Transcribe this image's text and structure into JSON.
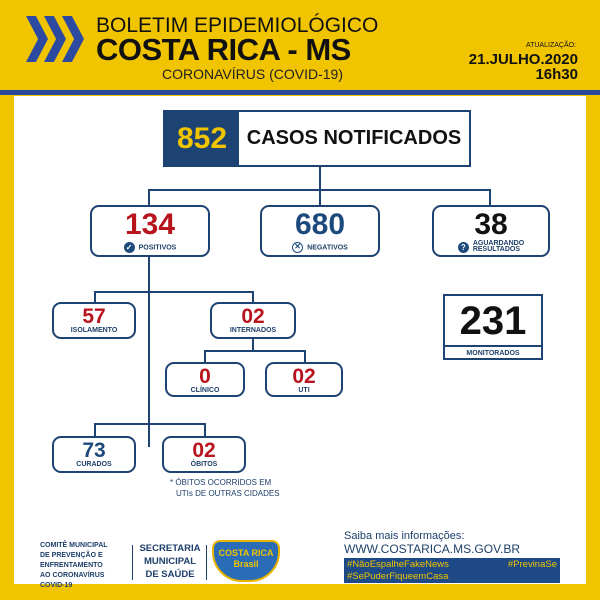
{
  "header": {
    "title_line1": "BOLETIM EPIDEMIOLÓGICO",
    "title_line2": "COSTA RICA - MS",
    "subtitle": "CORONAVÍRUS (COVID-19)",
    "update_label": "ATUALIZAÇÃO:",
    "date": "21.JULHO.2020",
    "time": "16h30"
  },
  "total": {
    "value": "852",
    "label": "CASOS NOTIFICADOS"
  },
  "positivos": {
    "value": "134",
    "label": "POSITIVOS",
    "icon": "check-circle-icon"
  },
  "negativos": {
    "value": "680",
    "label": "NEGATIVOS",
    "icon": "x-circle-icon"
  },
  "aguardando": {
    "value": "38",
    "label_line1": "AGUARDANDO",
    "label_line2": "RESULTADOS",
    "icon": "question-circle-icon"
  },
  "monitorados": {
    "value": "231",
    "label": "MONITORADOS"
  },
  "isolamento": {
    "value": "57",
    "label": "ISOLAMENTO"
  },
  "internados": {
    "value": "02",
    "label": "INTERNADOS"
  },
  "clinico": {
    "value": "0",
    "label": "CLÍNICO"
  },
  "uti": {
    "value": "02",
    "label": "UTI"
  },
  "curados": {
    "value": "73",
    "label": "CURADOS"
  },
  "obitos": {
    "value": "02",
    "label": "ÓBITOS",
    "note_line1": "* ÓBITOS OCORRIDOS EM",
    "note_line2": "UTIs DE OUTRAS CIDADES"
  },
  "footer": {
    "comite": [
      "COMITÊ MUNICIPAL",
      "DE PREVENÇÃO E",
      "ENFRENTAMENTO",
      "AO CORONAVÍRUS",
      "COVID-19"
    ],
    "secretaria": [
      "SECRETARIA",
      "MUNICIPAL",
      "DE SAÚDE"
    ],
    "logo_text": "COSTA RICA Brasil",
    "info": "Saiba mais informações:",
    "url": "WWW.COSTARICA.MS.GOV.BR",
    "tags": [
      "#NãoEspalheFakeNews",
      "#PrevinaSe",
      "#SePuderFiqueemCasa"
    ]
  },
  "colors": {
    "yellow": "#f1c400",
    "blue": "#1d4372",
    "red": "#b8141e"
  }
}
